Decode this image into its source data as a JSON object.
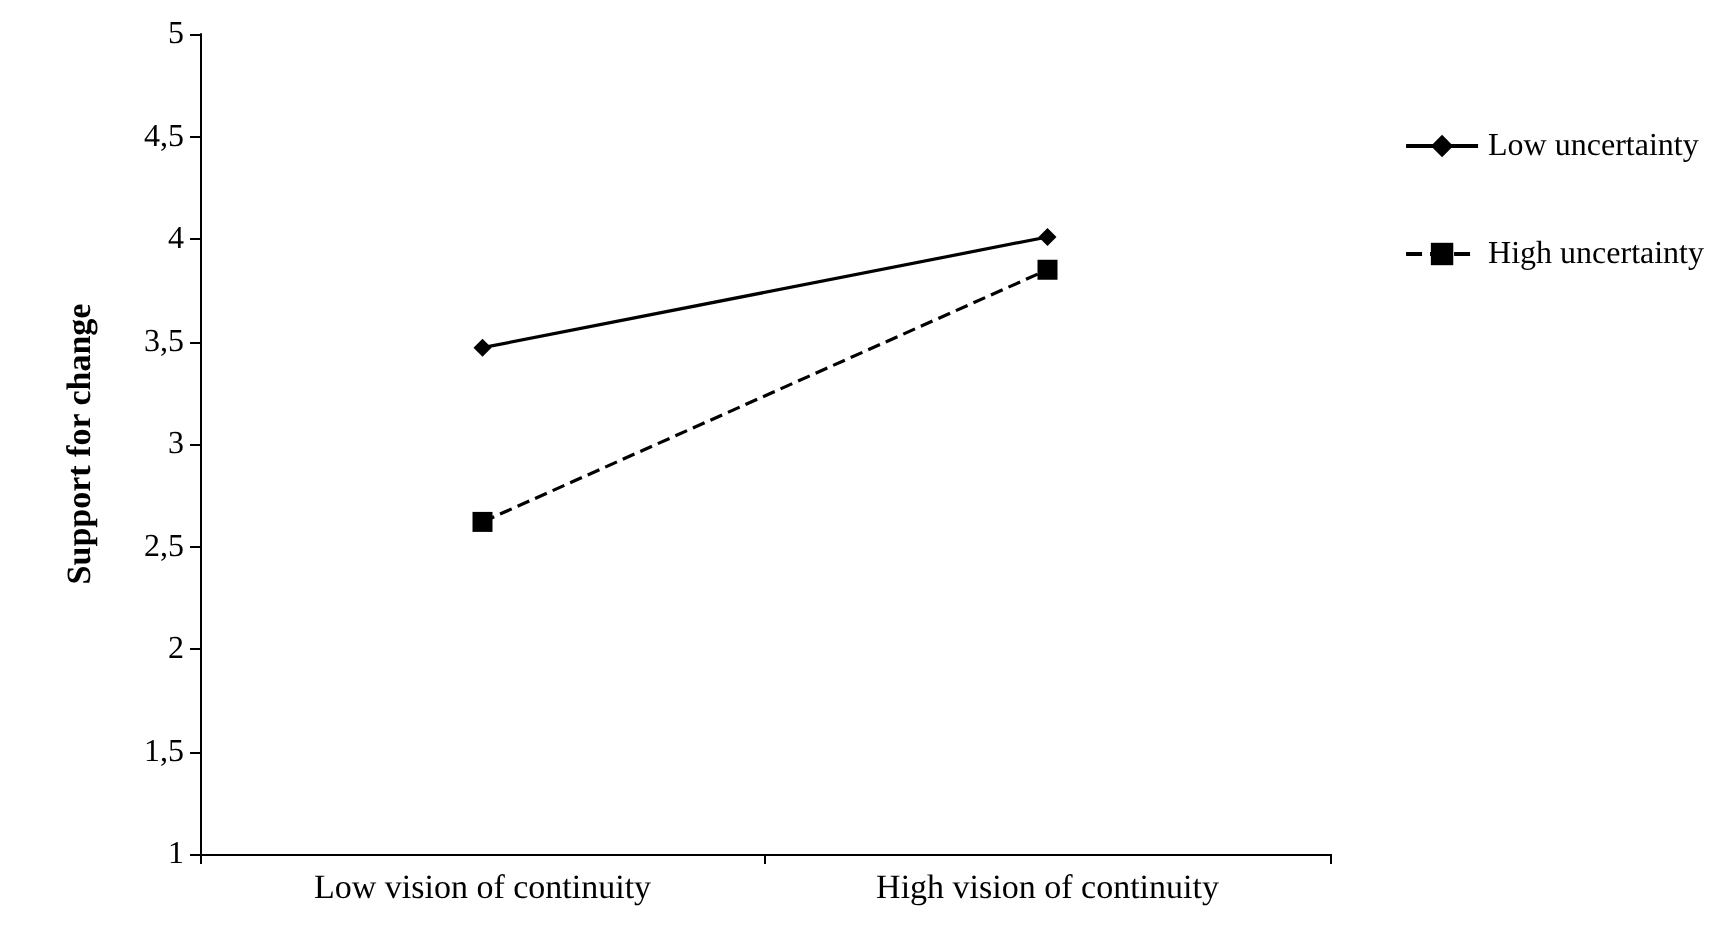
{
  "chart_data": {
    "type": "line",
    "ylabel": "Support for change",
    "categories": [
      "Low vision of continuity",
      "High vision of continuity"
    ],
    "series": [
      {
        "name": "Low uncertainty",
        "color": "#000000",
        "values": [
          3.47,
          4.01
        ],
        "marker": "diamond",
        "line_style": "solid"
      },
      {
        "name": "High uncertainty",
        "color": "#000000",
        "values": [
          2.62,
          3.85
        ],
        "marker": "square",
        "line_style": "dashed"
      }
    ],
    "ylim": [
      1,
      5
    ],
    "yticks": [
      1,
      {
        "value": 1.5,
        "label": "1,5"
      },
      2,
      {
        "value": 2.5,
        "label": "2,5"
      },
      3,
      {
        "value": 3.5,
        "label": "3,5"
      },
      4,
      {
        "value": 4.5,
        "label": "4,5"
      },
      5
    ],
    "grid": false,
    "legend": "right"
  }
}
